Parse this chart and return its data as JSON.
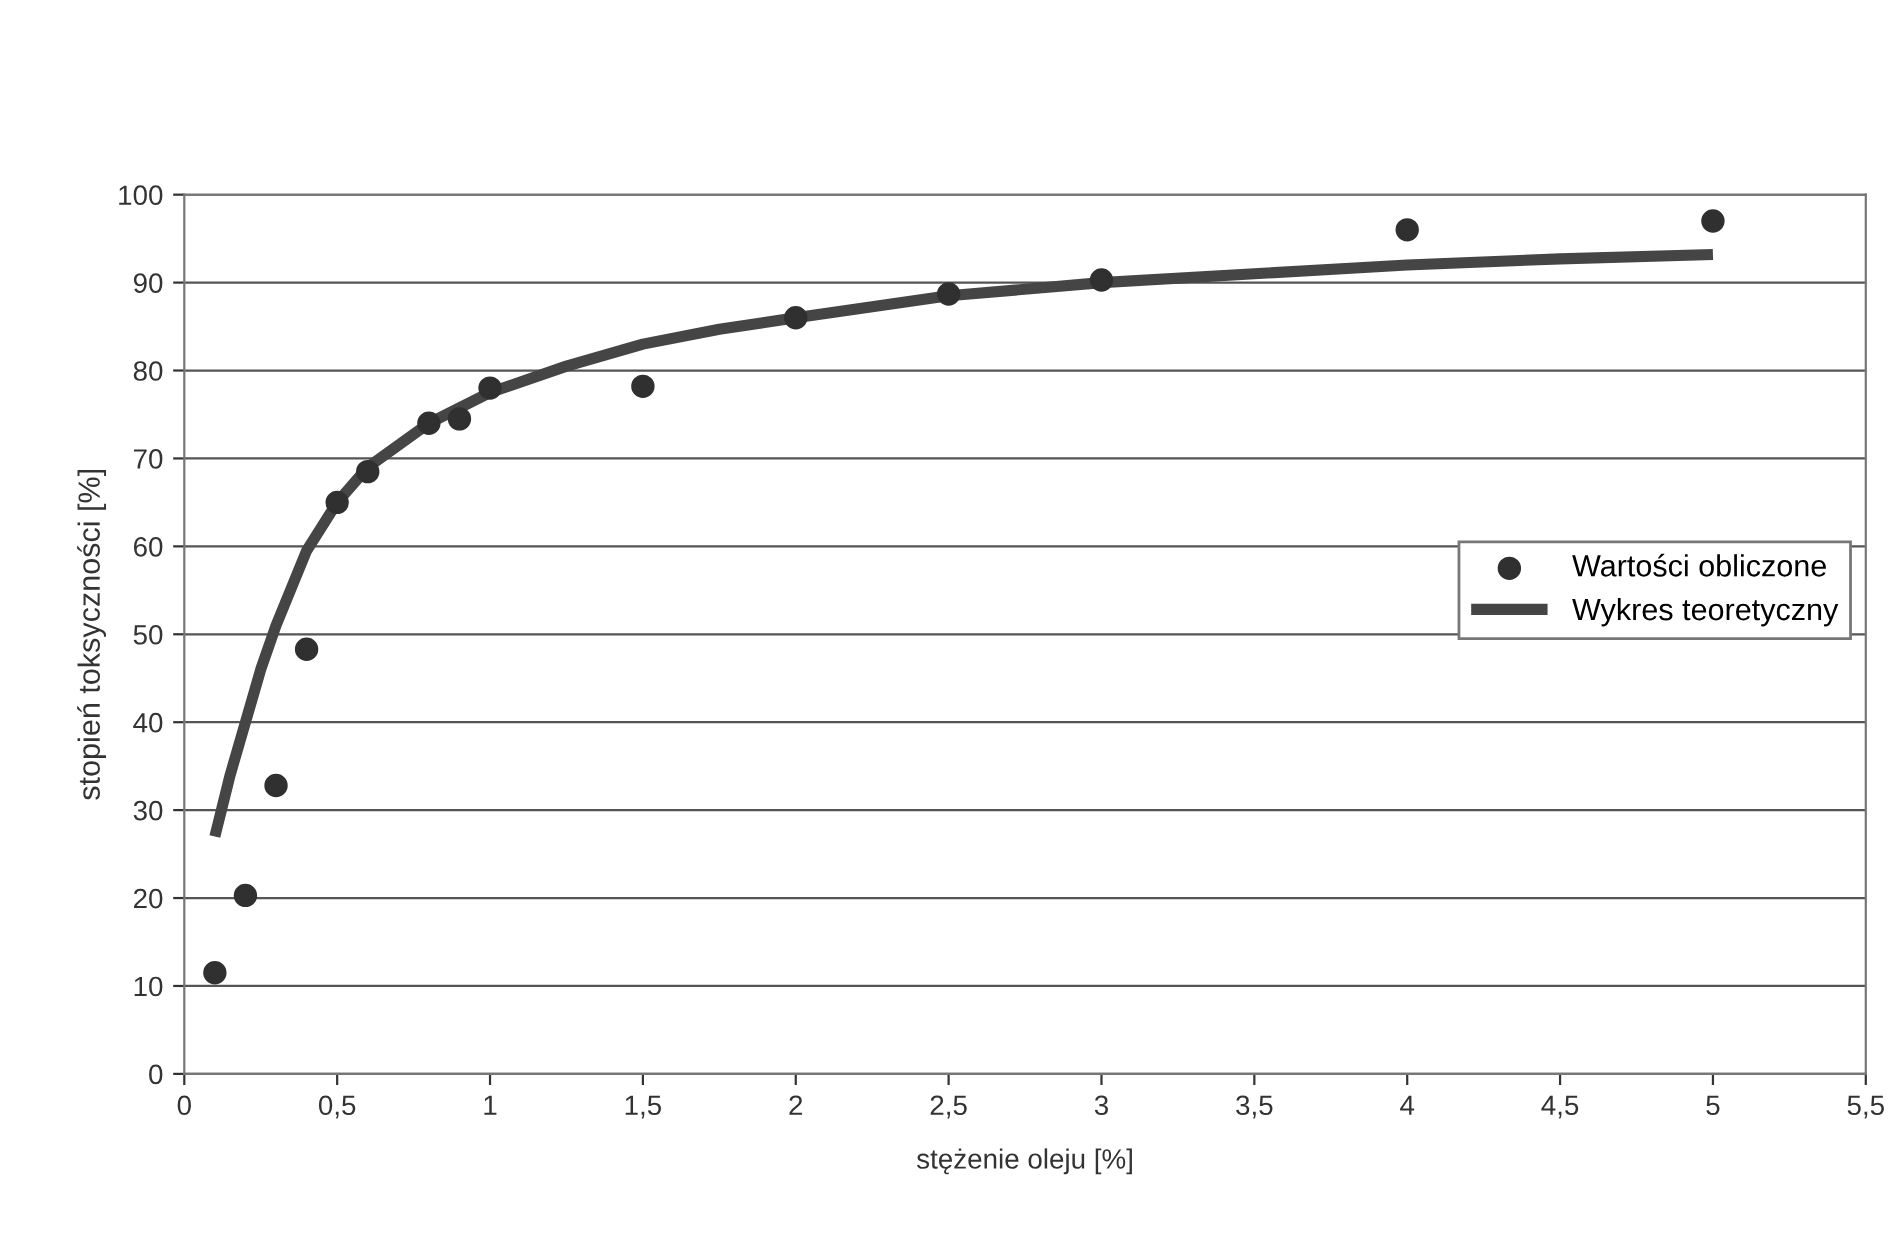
{
  "chart_data": {
    "type": "scatter",
    "xlabel": "stężenie oleju [%]",
    "ylabel": "stopień toksyczności [%]",
    "xlim": [
      0,
      5.5
    ],
    "xticks": [
      0,
      {
        "value": 0.5,
        "label": "0,5"
      },
      1,
      {
        "value": 1.5,
        "label": "1,5"
      },
      2,
      {
        "value": 2.5,
        "label": "2,5"
      },
      3,
      {
        "value": 3.5,
        "label": "3,5"
      },
      4,
      {
        "value": 4.5,
        "label": "4,5"
      },
      5,
      {
        "value": 5.5,
        "label": "5,5"
      }
    ],
    "ylim": [
      0,
      100
    ],
    "yticks": [
      0,
      10,
      20,
      30,
      40,
      50,
      60,
      70,
      80,
      90,
      100
    ],
    "grid": "y",
    "legend": "right",
    "series": [
      {
        "name": "Wartości obliczone",
        "marker": "circle",
        "color": "#303030",
        "x": [
          0.1,
          0.2,
          0.3,
          0.4,
          0.5,
          0.6,
          0.8,
          0.9,
          1.0,
          1.5,
          2,
          2.5,
          3,
          4,
          5
        ],
        "values": [
          11.5,
          20.3,
          32.8,
          48.3,
          65,
          68.5,
          74,
          74.5,
          78,
          78.2,
          86,
          88.7,
          90.3,
          96,
          97
        ]
      },
      {
        "name": "Wykres teoretyczny",
        "type": "line",
        "marker": "none",
        "line_style": "solid",
        "color": "#454545",
        "x": [
          0.1,
          0.15,
          0.2,
          0.25,
          0.3,
          0.4,
          0.5,
          0.6,
          0.7,
          0.8,
          1.0,
          1.25,
          1.5,
          1.75,
          2,
          2.5,
          3,
          3.5,
          4,
          4.5,
          5
        ],
        "values": [
          27,
          34,
          40,
          46,
          51,
          59.5,
          65,
          69,
          71.5,
          74,
          77.5,
          80.5,
          83,
          84.7,
          86,
          88.5,
          90,
          91,
          92,
          92.7,
          93.2
        ]
      }
    ]
  }
}
